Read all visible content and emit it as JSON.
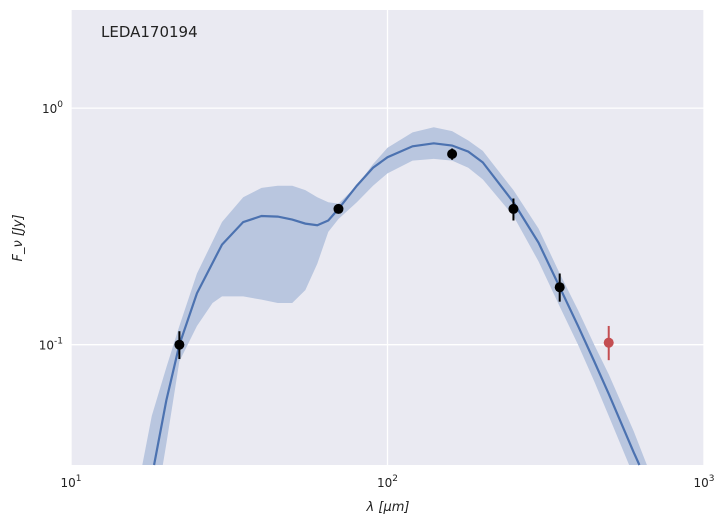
{
  "chart_data": {
    "type": "line",
    "title": "LEDA170194",
    "xlabel": "λ [μm]",
    "ylabel": "F_ν [Jy]",
    "xscale": "log",
    "yscale": "log",
    "xlim": [
      10,
      1000
    ],
    "ylim": [
      0.031,
      2.6
    ],
    "grid": true,
    "x_ticks": [
      {
        "value": 10,
        "base": "10",
        "exp": "1"
      },
      {
        "value": 100,
        "base": "10",
        "exp": "2"
      },
      {
        "value": 1000,
        "base": "10",
        "exp": "3"
      }
    ],
    "y_ticks": [
      {
        "value": 0.1,
        "base": "10",
        "exp": "-1"
      },
      {
        "value": 1,
        "base": "10",
        "exp": "0"
      }
    ],
    "colors": {
      "background": "#eaeaf2",
      "grid": "#ffffff",
      "model": "#4c72b0",
      "band": "#b9c6df",
      "points": "#000000",
      "upper_limit": "#c44e52"
    },
    "model_curve": [
      [
        18.3,
        0.031
      ],
      [
        20,
        0.058
      ],
      [
        22,
        0.1
      ],
      [
        25,
        0.165
      ],
      [
        30,
        0.265
      ],
      [
        35,
        0.33
      ],
      [
        40,
        0.35
      ],
      [
        45,
        0.348
      ],
      [
        50,
        0.338
      ],
      [
        55,
        0.325
      ],
      [
        60,
        0.32
      ],
      [
        65,
        0.335
      ],
      [
        70,
        0.375
      ],
      [
        80,
        0.47
      ],
      [
        90,
        0.56
      ],
      [
        100,
        0.62
      ],
      [
        120,
        0.69
      ],
      [
        140,
        0.71
      ],
      [
        160,
        0.695
      ],
      [
        180,
        0.655
      ],
      [
        200,
        0.59
      ],
      [
        250,
        0.4
      ],
      [
        300,
        0.27
      ],
      [
        350,
        0.175
      ],
      [
        400,
        0.12
      ],
      [
        450,
        0.085
      ],
      [
        500,
        0.062
      ],
      [
        600,
        0.035
      ],
      [
        625,
        0.031
      ]
    ],
    "band_upper": [
      [
        16.8,
        0.031
      ],
      [
        18,
        0.05
      ],
      [
        20,
        0.08
      ],
      [
        22,
        0.12
      ],
      [
        25,
        0.2
      ],
      [
        30,
        0.33
      ],
      [
        35,
        0.42
      ],
      [
        40,
        0.46
      ],
      [
        45,
        0.47
      ],
      [
        50,
        0.47
      ],
      [
        55,
        0.45
      ],
      [
        60,
        0.42
      ],
      [
        65,
        0.4
      ],
      [
        70,
        0.395
      ],
      [
        80,
        0.47
      ],
      [
        90,
        0.58
      ],
      [
        100,
        0.68
      ],
      [
        120,
        0.79
      ],
      [
        140,
        0.83
      ],
      [
        160,
        0.8
      ],
      [
        180,
        0.73
      ],
      [
        200,
        0.66
      ],
      [
        250,
        0.45
      ],
      [
        300,
        0.31
      ],
      [
        350,
        0.2
      ],
      [
        400,
        0.14
      ],
      [
        450,
        0.1
      ],
      [
        500,
        0.075
      ],
      [
        600,
        0.043
      ],
      [
        660,
        0.031
      ]
    ],
    "band_lower": [
      [
        19.5,
        0.031
      ],
      [
        20,
        0.038
      ],
      [
        22,
        0.085
      ],
      [
        25,
        0.12
      ],
      [
        28,
        0.15
      ],
      [
        30,
        0.16
      ],
      [
        35,
        0.16
      ],
      [
        40,
        0.155
      ],
      [
        45,
        0.15
      ],
      [
        50,
        0.15
      ],
      [
        55,
        0.17
      ],
      [
        60,
        0.22
      ],
      [
        65,
        0.3
      ],
      [
        70,
        0.34
      ],
      [
        80,
        0.4
      ],
      [
        90,
        0.47
      ],
      [
        100,
        0.53
      ],
      [
        120,
        0.6
      ],
      [
        140,
        0.61
      ],
      [
        160,
        0.6
      ],
      [
        180,
        0.56
      ],
      [
        200,
        0.5
      ],
      [
        250,
        0.35
      ],
      [
        300,
        0.225
      ],
      [
        350,
        0.145
      ],
      [
        400,
        0.1
      ],
      [
        450,
        0.07
      ],
      [
        500,
        0.05
      ],
      [
        580,
        0.031
      ]
    ],
    "data_points": [
      {
        "x": 22,
        "y": 0.1,
        "ylo": 0.087,
        "yhi": 0.114
      },
      {
        "x": 70,
        "y": 0.375,
        "ylo": 0.36,
        "yhi": 0.39
      },
      {
        "x": 160,
        "y": 0.64,
        "ylo": 0.605,
        "yhi": 0.675
      },
      {
        "x": 250,
        "y": 0.375,
        "ylo": 0.335,
        "yhi": 0.415
      },
      {
        "x": 350,
        "y": 0.175,
        "ylo": 0.152,
        "yhi": 0.2
      }
    ],
    "upper_limit_points": [
      {
        "x": 500,
        "y": 0.102,
        "ylo": 0.086,
        "yhi": 0.12
      }
    ]
  }
}
